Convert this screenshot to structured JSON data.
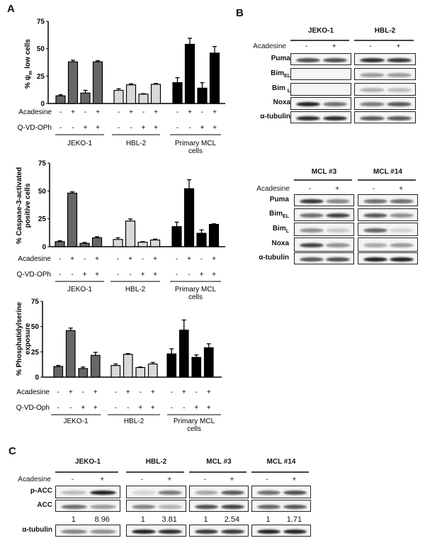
{
  "panel_letters": [
    "A",
    "B",
    "C"
  ],
  "chart_data": [
    {
      "type": "bar",
      "ylabel": "% ψm low cells",
      "ylabel_main": "% ψ",
      "ylabel_sub": "m",
      "ylabel_rest": " low cells",
      "ylim": [
        0,
        75
      ],
      "yticks": [
        0,
        25,
        50,
        75
      ],
      "row_labels": [
        "Acadesine",
        "Q-VD-OPh"
      ],
      "acadesine": [
        "-",
        "+",
        "-",
        "+"
      ],
      "qvd": [
        "-",
        "-",
        "+",
        "+"
      ],
      "groups": [
        {
          "name": "JEKO-1",
          "name2": "",
          "color": "#666666",
          "values": [
            7,
            38,
            9.5,
            38
          ],
          "errors": [
            1,
            1.5,
            2.5,
            1
          ]
        },
        {
          "name": "HBL-2",
          "name2": "",
          "color": "#d9d9d9",
          "values": [
            12,
            17,
            8.5,
            17.5
          ],
          "errors": [
            1.5,
            1,
            0.5,
            0.8
          ]
        },
        {
          "name": "Primary MCL",
          "name2": "cells",
          "color": "#000000",
          "values": [
            19,
            54,
            14,
            46
          ],
          "errors": [
            4.5,
            5.5,
            5,
            6
          ]
        }
      ]
    },
    {
      "type": "bar",
      "ylabel_lines": [
        "% Caspase-3-activated",
        "positive cells"
      ],
      "ylim": [
        0,
        75
      ],
      "yticks": [
        0,
        25,
        50,
        75
      ],
      "row_labels": [
        "Acadesine",
        "Q-VD-OPh"
      ],
      "acadesine": [
        "-",
        "+",
        "-",
        "+"
      ],
      "qvd": [
        "-",
        "-",
        "+",
        "+"
      ],
      "groups": [
        {
          "name": "JEKO-1",
          "name2": "",
          "color": "#666666",
          "values": [
            4.5,
            48,
            3,
            8
          ],
          "errors": [
            0.8,
            1.2,
            0.8,
            1
          ]
        },
        {
          "name": "HBL-2",
          "name2": "",
          "color": "#d9d9d9",
          "values": [
            6.5,
            23,
            4,
            6
          ],
          "errors": [
            1.5,
            1.8,
            0.5,
            0.8
          ]
        },
        {
          "name": "Primary MCL",
          "name2": "cells",
          "color": "#000000",
          "values": [
            18,
            52,
            12,
            20
          ],
          "errors": [
            4,
            8,
            3,
            0.5
          ]
        }
      ]
    },
    {
      "type": "bar",
      "ylabel_lines": [
        "% Phosphatidylserine",
        "exposure"
      ],
      "ylim": [
        0,
        75
      ],
      "yticks": [
        0,
        25,
        50,
        75
      ],
      "row_labels": [
        "Acadesine",
        "Q-VD-Oph"
      ],
      "acadesine": [
        "-",
        "+",
        "-",
        "+"
      ],
      "qvd": [
        "-",
        "-",
        "+",
        "+"
      ],
      "groups": [
        {
          "name": "JEKO-1",
          "name2": "",
          "color": "#666666",
          "values": [
            10.5,
            46,
            8.5,
            21.5
          ],
          "errors": [
            1,
            2.5,
            1.5,
            3
          ]
        },
        {
          "name": "HBL-2",
          "name2": "",
          "color": "#d9d9d9",
          "values": [
            11.5,
            22.5,
            9.5,
            13
          ],
          "errors": [
            1.5,
            0.8,
            0.5,
            1.5
          ]
        },
        {
          "name": "Primary MCL",
          "name2": "cells",
          "color": "#000000",
          "values": [
            23,
            46.5,
            19.5,
            29
          ],
          "errors": [
            5,
            10,
            2.5,
            4
          ]
        }
      ]
    }
  ],
  "blots": [
    {
      "id": "b-top",
      "treatment_label": "Acadesine",
      "lanes": [
        "-",
        "+"
      ],
      "groups": [
        "JEKO-1",
        "HBL-2"
      ],
      "rows": [
        {
          "label": "Puma",
          "sub": "",
          "bands": [
            [
              0.75,
              0.75
            ],
            [
              0.9,
              0.85
            ]
          ]
        },
        {
          "label": "Bim",
          "sub": "EL",
          "bands": [
            [
              0,
              0
            ],
            [
              0.4,
              0.4
            ]
          ]
        },
        {
          "label": "Bim ",
          "sub": "L",
          "bands": [
            [
              0,
              0
            ],
            [
              0.3,
              0.25
            ]
          ]
        },
        {
          "label": "Noxa",
          "sub": "",
          "bands": [
            [
              0.95,
              0.6
            ],
            [
              0.55,
              0.7
            ]
          ]
        },
        {
          "label": "α-tubulin",
          "sub": "",
          "bands": [
            [
              0.9,
              0.9
            ],
            [
              0.7,
              0.7
            ]
          ]
        }
      ]
    },
    {
      "id": "b-bottom",
      "treatment_label": "Acadesine",
      "lanes": [
        "-",
        "+"
      ],
      "groups": [
        "MCL #3",
        "MCL #14"
      ],
      "rows": [
        {
          "label": "Puma",
          "sub": "",
          "bands": [
            [
              0.85,
              0.5
            ],
            [
              0.6,
              0.6
            ]
          ]
        },
        {
          "label": "Bim",
          "sub": "EL",
          "bands": [
            [
              0.6,
              0.8
            ],
            [
              0.7,
              0.45
            ]
          ]
        },
        {
          "label": "Bim",
          "sub": "L",
          "bands": [
            [
              0.45,
              0.2
            ],
            [
              0.65,
              0.15
            ]
          ]
        },
        {
          "label": "Noxa",
          "sub": "",
          "bands": [
            [
              0.8,
              0.45
            ],
            [
              0.35,
              0.4
            ]
          ]
        },
        {
          "label": "α-tubulin",
          "sub": "",
          "bands": [
            [
              0.7,
              0.75
            ],
            [
              0.95,
              0.95
            ]
          ]
        }
      ]
    },
    {
      "id": "c",
      "treatment_label": "Acadesine",
      "lanes": [
        "-",
        "+"
      ],
      "groups": [
        "JEKO-1",
        "HBL-2",
        "MCL #3",
        "MCL #14"
      ],
      "rows": [
        {
          "label": "p-ACC",
          "sub": "",
          "bands": [
            [
              0.25,
              0.95
            ],
            [
              0.15,
              0.55
            ],
            [
              0.35,
              0.7
            ],
            [
              0.6,
              0.75
            ]
          ]
        },
        {
          "label": "ACC",
          "sub": "",
          "bands": [
            [
              0.6,
              0.4
            ],
            [
              0.5,
              0.3
            ],
            [
              0.75,
              0.8
            ],
            [
              0.65,
              0.7
            ]
          ]
        },
        {
          "label": "α-tubulin",
          "sub": "",
          "bands": [
            [
              0.5,
              0.45
            ],
            [
              0.95,
              0.9
            ],
            [
              0.85,
              0.85
            ],
            [
              0.95,
              0.95
            ]
          ]
        }
      ],
      "ratios": [
        [
          "1",
          "8.96"
        ],
        [
          "1",
          "3.81"
        ],
        [
          "1",
          "2.54"
        ],
        [
          "1",
          "1.71"
        ]
      ]
    }
  ]
}
